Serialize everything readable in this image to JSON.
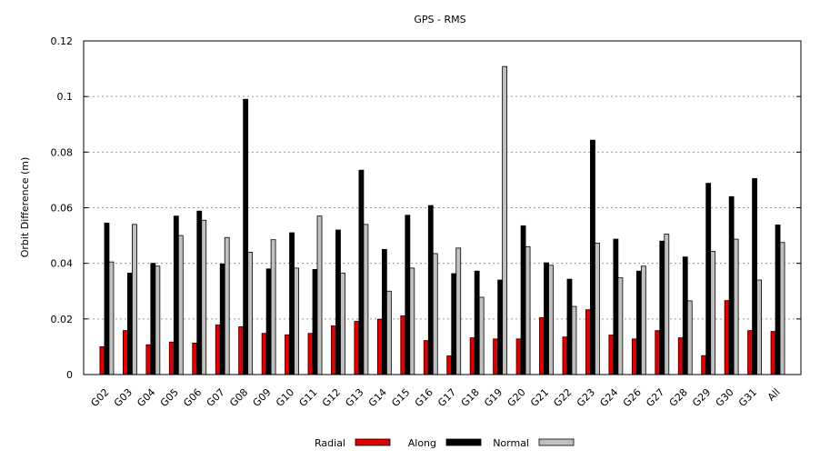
{
  "chart_data": {
    "type": "bar",
    "title": "GPS - RMS",
    "ylabel": "Orbit Difference (m)",
    "xlabel": "",
    "ylim": [
      0,
      0.12
    ],
    "yticks": [
      "0",
      "0.02",
      "0.04",
      "0.06",
      "0.08",
      "0.1",
      "0.12"
    ],
    "grid": true,
    "legend_position": "bottom",
    "categories": [
      "G02",
      "G03",
      "G04",
      "G05",
      "G06",
      "G07",
      "G08",
      "G09",
      "G10",
      "G11",
      "G12",
      "G13",
      "G14",
      "G15",
      "G16",
      "G17",
      "G18",
      "G19",
      "G20",
      "G21",
      "G22",
      "G23",
      "G24",
      "G26",
      "G27",
      "G28",
      "G29",
      "G30",
      "G31",
      "All"
    ],
    "series": [
      {
        "name": "Radial",
        "color": "#e00000",
        "values": [
          0.01,
          0.0158,
          0.0107,
          0.0117,
          0.0113,
          0.0178,
          0.0172,
          0.0148,
          0.0143,
          0.0148,
          0.0175,
          0.0191,
          0.0199,
          0.0211,
          0.0122,
          0.0067,
          0.0132,
          0.0128,
          0.0128,
          0.0205,
          0.0135,
          0.0233,
          0.0142,
          0.0128,
          0.0158,
          0.0132,
          0.0068,
          0.0266,
          0.0158,
          0.0155
        ]
      },
      {
        "name": "Along",
        "color": "#000000",
        "values": [
          0.0545,
          0.0365,
          0.04,
          0.057,
          0.0588,
          0.0398,
          0.099,
          0.038,
          0.051,
          0.0378,
          0.052,
          0.0735,
          0.045,
          0.0573,
          0.0608,
          0.0363,
          0.0372,
          0.034,
          0.0535,
          0.0402,
          0.0343,
          0.0843,
          0.0487,
          0.0372,
          0.048,
          0.0423,
          0.0688,
          0.064,
          0.0705,
          0.0538
        ]
      },
      {
        "name": "Normal",
        "color": "#c0c0c0",
        "values": [
          0.0405,
          0.054,
          0.039,
          0.05,
          0.0555,
          0.0493,
          0.044,
          0.0485,
          0.0383,
          0.057,
          0.0365,
          0.054,
          0.03,
          0.0383,
          0.0435,
          0.0455,
          0.0278,
          0.1108,
          0.046,
          0.0393,
          0.0245,
          0.0473,
          0.0348,
          0.039,
          0.0505,
          0.0265,
          0.0443,
          0.0487,
          0.034,
          0.0475
        ]
      }
    ]
  }
}
